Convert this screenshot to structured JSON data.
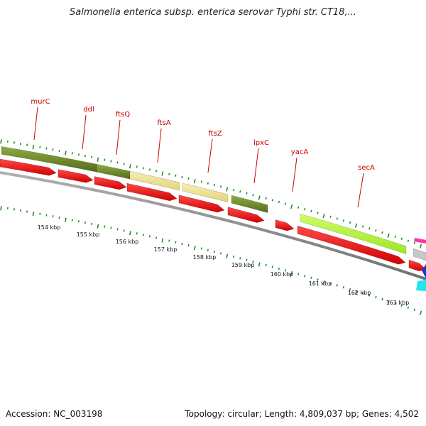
{
  "title": "Salmonella enterica subsp. enterica serovar Typhi str. CT18,...",
  "accession": "Accession: NC_003198",
  "topology": "Topology: circular; Length: 4,809,037 bp; Genes: 4,502",
  "gene_labels": [
    "murC",
    "ddl",
    "ftsQ",
    "ftsA",
    "ftsZ",
    "lpxC",
    "yacA",
    "secA"
  ],
  "kbp_labels": [
    "154 kbp",
    "155 kbp",
    "156 kbp",
    "157 kbp",
    "158 kbp",
    "159 kbp",
    "160 kbp",
    "161 kbp",
    "162 kbp",
    "163 kbp"
  ],
  "colors": {
    "gene_label": "#cc0000",
    "cds_arrow": "#ee1111",
    "backbone": "#888888",
    "tick_green": "#2a8a2a",
    "band_olive": "#6b8e23",
    "band_khaki": "#f0e68c",
    "band_lime": "#adff2f"
  }
}
